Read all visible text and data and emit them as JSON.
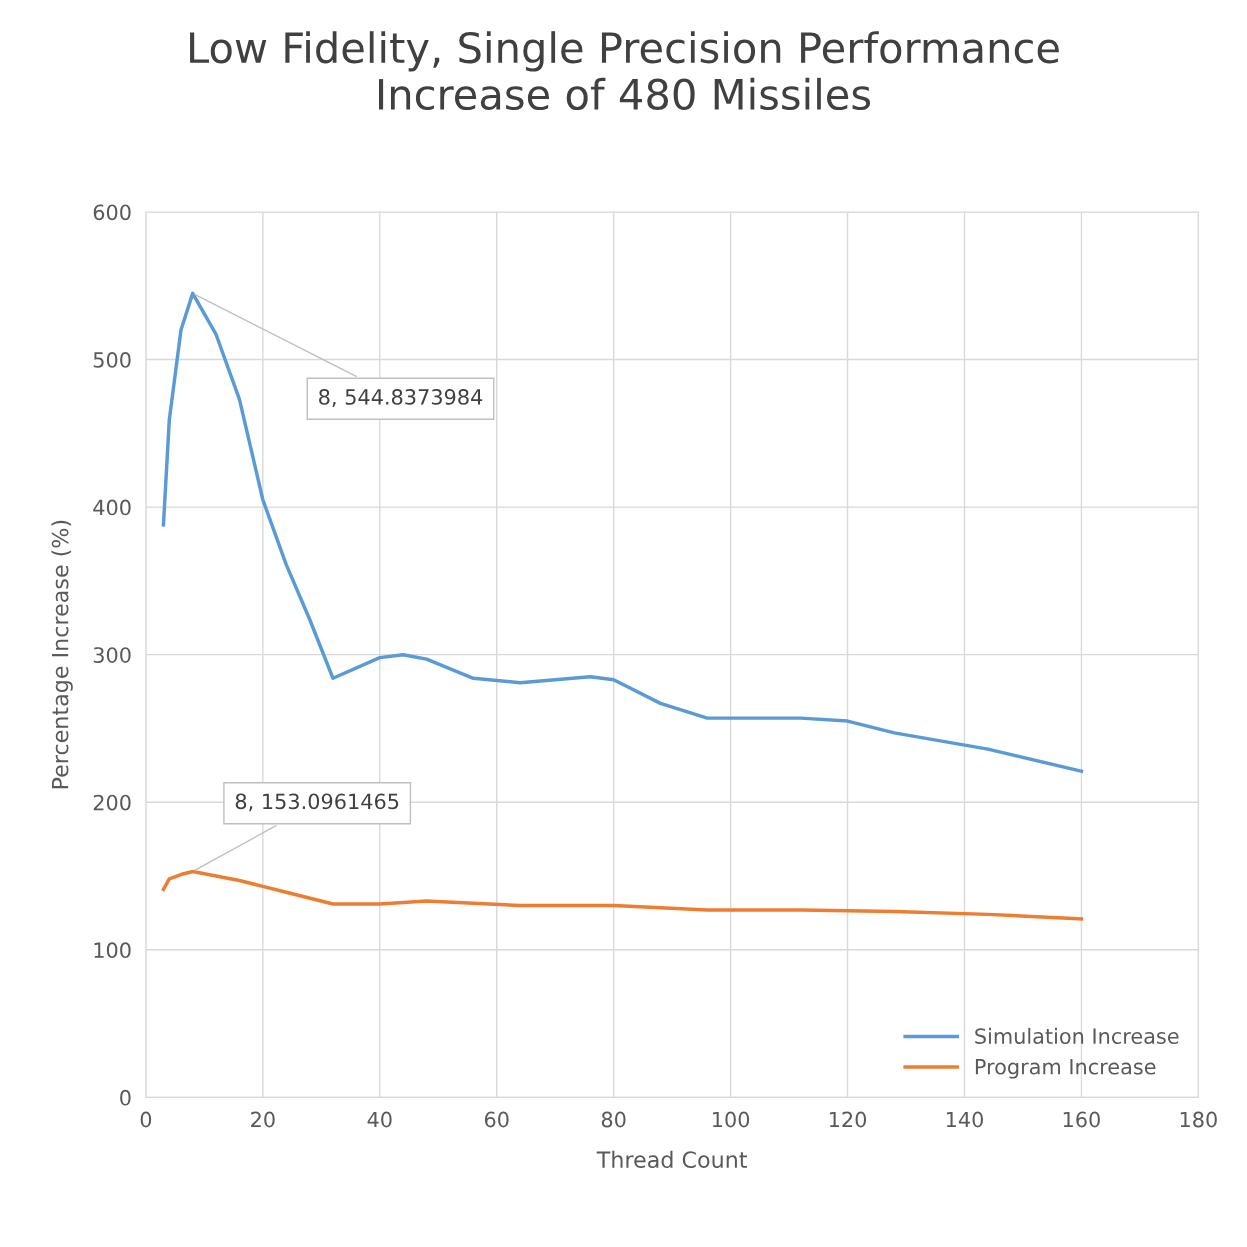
{
  "chart_data": {
    "type": "line",
    "title": "Low Fidelity, Single Precision Performance\nIncrease of 480 Missiles",
    "xlabel": "Thread Count",
    "ylabel": "Percentage Increase (%)",
    "xlim": [
      0,
      180
    ],
    "xticks": [
      0,
      20,
      40,
      60,
      80,
      100,
      120,
      140,
      160,
      180
    ],
    "ylim": [
      0,
      600
    ],
    "yticks": [
      0,
      100,
      200,
      300,
      400,
      500,
      600
    ],
    "grid": true,
    "legend": "bottom right",
    "marker": "none",
    "line_style": "solid",
    "series": [
      {
        "name": "Simulation Increase",
        "color": "#5b9bd5",
        "x": [
          3,
          4,
          6,
          8,
          12,
          16,
          20,
          24,
          28,
          32,
          40,
          44,
          48,
          56,
          64,
          76,
          80,
          88,
          96,
          112,
          120,
          128,
          144,
          160
        ],
        "values": [
          388,
          459,
          520,
          544.8373984,
          517,
          473,
          405,
          361,
          324,
          284,
          298,
          300,
          297,
          284,
          281,
          285,
          283,
          267,
          257,
          257,
          255,
          247,
          236,
          221
        ]
      },
      {
        "name": "Program Increase",
        "color": "#ed7d31",
        "x": [
          3,
          4,
          6,
          8,
          12,
          16,
          20,
          24,
          32,
          40,
          48,
          64,
          80,
          96,
          112,
          128,
          144,
          160
        ],
        "values": [
          141,
          148,
          151,
          153.0961465,
          150,
          147,
          143,
          139,
          131,
          131,
          133,
          130,
          130,
          127,
          127,
          126,
          124,
          121
        ]
      }
    ],
    "annotations": [
      {
        "text": "8, 544.8373984",
        "x": 8,
        "y": 544.8373984
      },
      {
        "text": "8, 153.0961465",
        "x": 8,
        "y": 153.0961465
      }
    ]
  }
}
